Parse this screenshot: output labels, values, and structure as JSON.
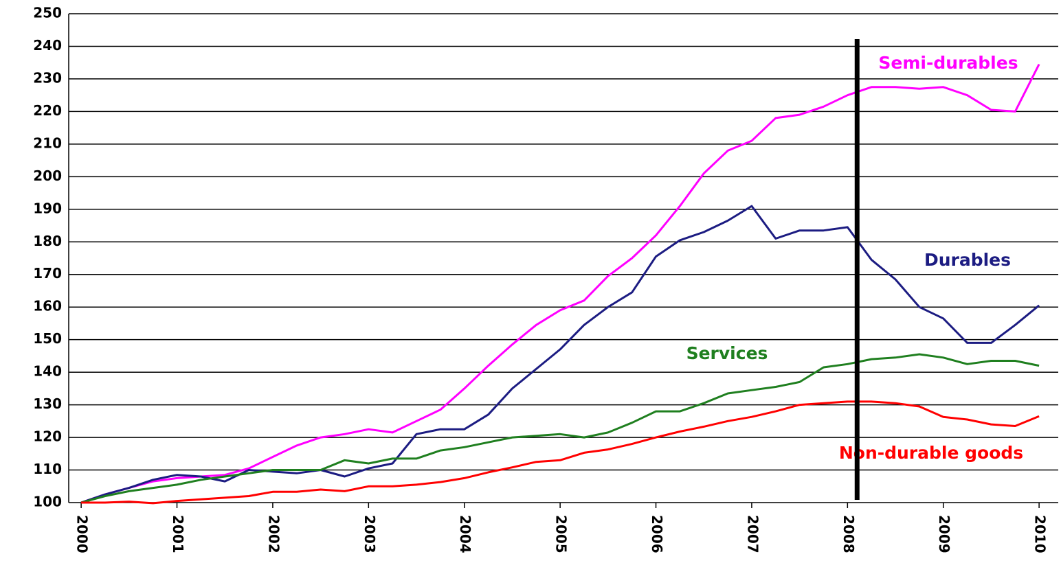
{
  "chart_data": {
    "type": "line",
    "x": [
      2000,
      2000.25,
      2000.5,
      2000.75,
      2001,
      2001.25,
      2001.5,
      2001.75,
      2002,
      2002.25,
      2002.5,
      2002.75,
      2003,
      2003.25,
      2003.5,
      2003.75,
      2004,
      2004.25,
      2004.5,
      2004.75,
      2005,
      2005.25,
      2005.5,
      2005.75,
      2006,
      2006.25,
      2006.5,
      2006.75,
      2007,
      2007.25,
      2007.5,
      2007.75,
      2008,
      2008.25,
      2008.5,
      2008.75,
      2009,
      2009.25,
      2009.5,
      2009.75,
      2010
    ],
    "xlim": [
      1999.87,
      2010.2
    ],
    "xticks": [
      2000,
      2001,
      2002,
      2003,
      2004,
      2005,
      2006,
      2007,
      2008,
      2009,
      2010
    ],
    "ylim": [
      100,
      250
    ],
    "yticks": [
      100,
      110,
      120,
      130,
      140,
      150,
      160,
      170,
      180,
      190,
      200,
      210,
      220,
      230,
      240,
      250
    ],
    "grid": true,
    "vline_x": 2008.1,
    "series": [
      {
        "name": "Semi-durables",
        "color": "#ff00ff",
        "values": [
          100,
          102.5,
          104.5,
          106.5,
          107.5,
          108,
          108.5,
          110.5,
          114,
          117.5,
          120,
          121,
          122.5,
          121.5,
          125,
          128.5,
          135,
          142,
          148.5,
          154.5,
          159,
          162,
          169.5,
          175,
          182,
          191,
          201,
          208,
          211,
          218,
          219,
          221.5,
          225,
          227.5,
          227.5,
          227,
          227.5,
          225,
          220.5,
          220,
          234.5
        ]
      },
      {
        "name": "Durables",
        "color": "#1c1c82",
        "values": [
          100,
          102.5,
          104.5,
          107,
          108.5,
          108,
          106.5,
          110,
          109.5,
          109,
          110,
          108,
          110.5,
          112,
          121,
          122.5,
          122.5,
          127,
          135,
          141,
          147,
          154.5,
          160,
          164.5,
          175.5,
          180.5,
          183,
          186.5,
          191,
          181,
          183.5,
          183.5,
          184.5,
          174.5,
          168.5,
          160,
          156.5,
          149,
          149,
          154.5,
          160.5
        ]
      },
      {
        "name": "Services",
        "color": "#1f7f1f",
        "values": [
          100,
          102,
          103.5,
          104.5,
          105.5,
          107,
          108,
          109,
          110,
          110,
          110,
          113,
          112,
          113.5,
          113.5,
          116,
          117,
          118.5,
          120,
          120.5,
          121,
          120,
          121.5,
          124.5,
          128,
          128,
          130.5,
          133.5,
          134.5,
          135.5,
          137,
          141.5,
          142.5,
          144,
          144.5,
          145.5,
          144.5,
          142.5,
          143.5,
          143.5,
          142
        ]
      },
      {
        "name": "Non-durable goods",
        "color": "#ff0000",
        "values": [
          100,
          100,
          100.3,
          99.8,
          100.5,
          101,
          101.5,
          102,
          103.3,
          103.3,
          104,
          103.5,
          105,
          105,
          105.5,
          106.3,
          107.5,
          109.3,
          110.8,
          112.5,
          113,
          115.3,
          116.3,
          118,
          120,
          121.8,
          123.3,
          125,
          126.3,
          128,
          130,
          130.5,
          131,
          131,
          130.5,
          129.5,
          126.3,
          125.5,
          124,
          123.5,
          126.5
        ]
      }
    ]
  }
}
